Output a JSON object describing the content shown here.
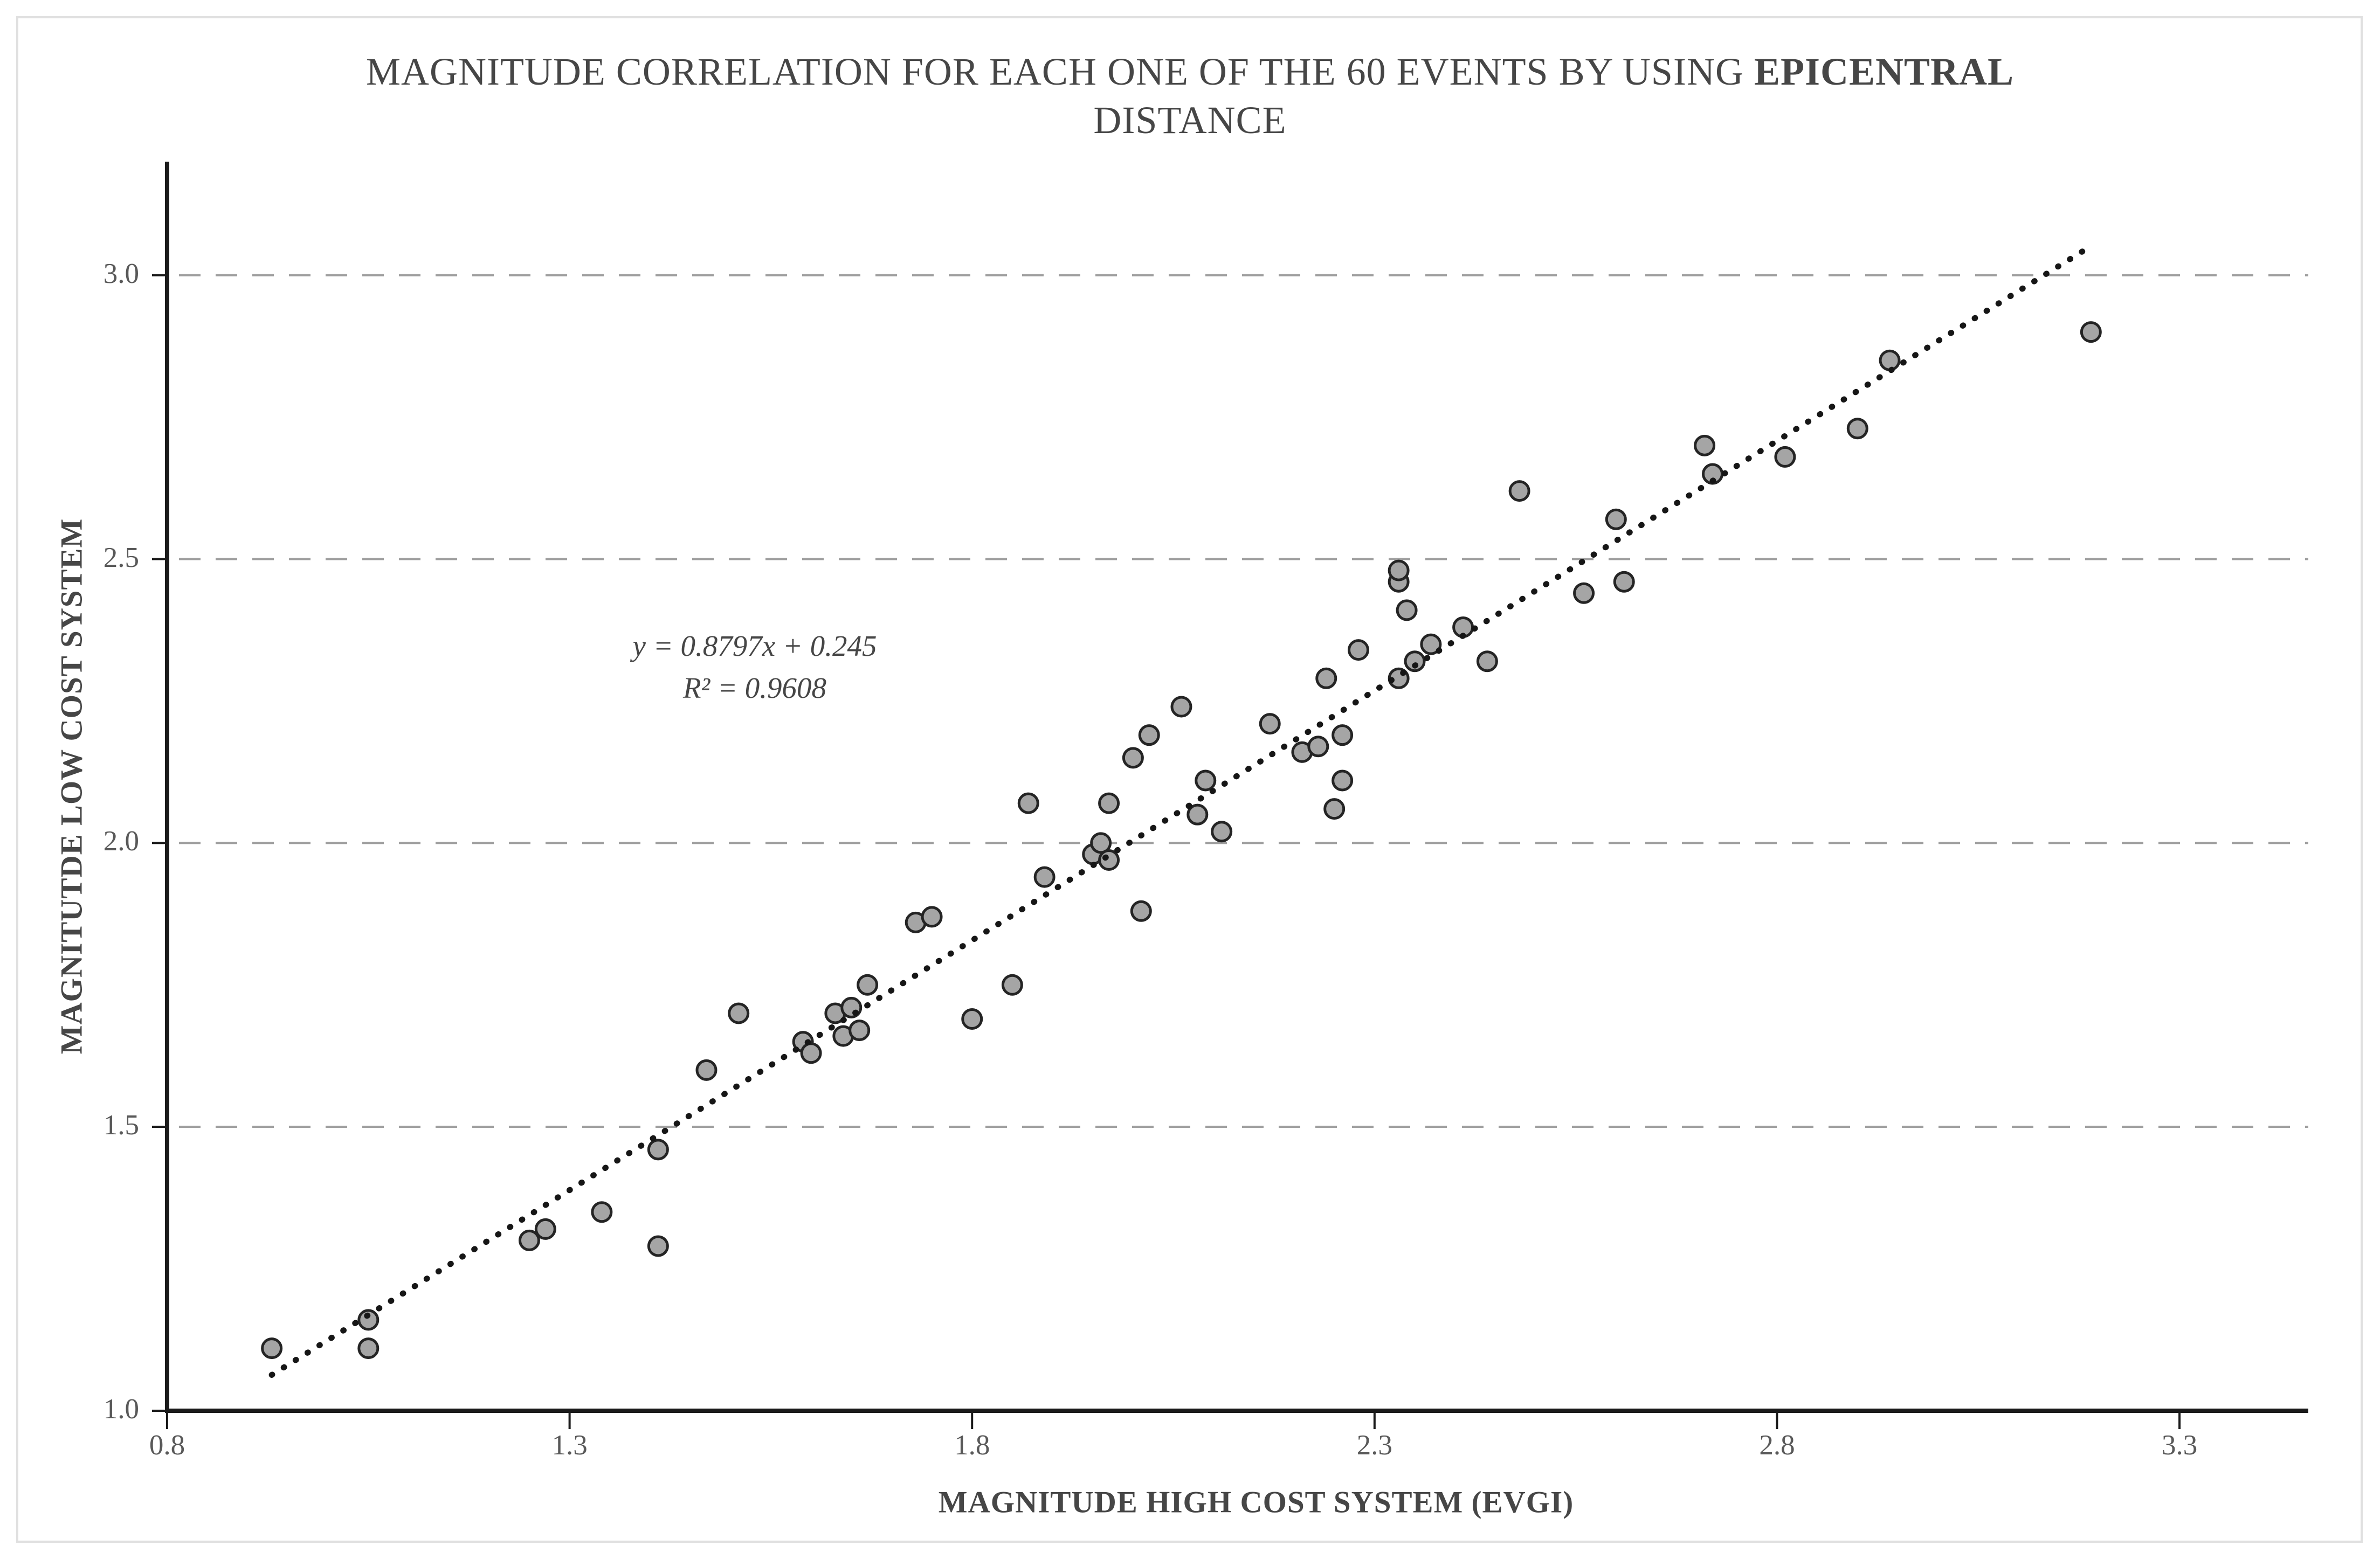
{
  "header": {
    "title_regular": "MAGNITUDE CORRELATION FOR EACH ONE OF THE 60 EVENTS BY USING ",
    "title_bold": "EPICENTRAL",
    "title_line2": "DISTANCE"
  },
  "annotation": {
    "equation": "y = 0.8797x + 0.245",
    "r_squared": "R² = 0.9608"
  },
  "colors": {
    "background": "#ffffff",
    "frame_border": "#e0e0e0",
    "grid": "#9f9f9f",
    "axis": "#1a1a1a",
    "marker_fill": "#a5a5a5",
    "marker_stroke": "#242424",
    "trendline": "#161616",
    "tick_text": "#595959",
    "title_text": "#464646"
  },
  "chart_data": {
    "type": "scatter",
    "title": "MAGNITUDE CORRELATION FOR EACH ONE OF THE 60 EVENTS BY USING EPICENTRAL DISTANCE",
    "xlabel": "MAGNITUDE HIGH COST SYSTEM (EVGI)",
    "ylabel": "MAGNITUTDE LOW COST SYSTEM",
    "xlim": [
      0.8,
      3.46
    ],
    "ylim": [
      1.0,
      3.2
    ],
    "x_ticks": [
      0.8,
      1.3,
      1.8,
      2.3,
      2.8,
      3.3
    ],
    "x_tick_labels": [
      "0.8",
      "1.3",
      "1.8",
      "2.3",
      "2.8",
      "3.3"
    ],
    "y_ticks": [
      1.0,
      1.5,
      2.0,
      2.5,
      3.0
    ],
    "y_tick_labels": [
      "1.0",
      "1.5",
      "2.0",
      "2.5",
      "3.0"
    ],
    "grid": "horizontal-dashed",
    "legend": "none",
    "trendline": {
      "style": "dotted",
      "slope": 0.8797,
      "intercept": 0.245,
      "x_start": 0.93,
      "x_end": 3.18
    },
    "points": [
      [
        0.93,
        1.11
      ],
      [
        1.05,
        1.16
      ],
      [
        1.05,
        1.11
      ],
      [
        1.25,
        1.3
      ],
      [
        1.27,
        1.32
      ],
      [
        1.34,
        1.35
      ],
      [
        1.41,
        1.29
      ],
      [
        1.41,
        1.46
      ],
      [
        1.47,
        1.6
      ],
      [
        1.51,
        1.7
      ],
      [
        1.59,
        1.65
      ],
      [
        1.6,
        1.63
      ],
      [
        1.63,
        1.7
      ],
      [
        1.64,
        1.66
      ],
      [
        1.65,
        1.71
      ],
      [
        1.66,
        1.67
      ],
      [
        1.67,
        1.75
      ],
      [
        1.73,
        1.86
      ],
      [
        1.75,
        1.87
      ],
      [
        1.8,
        1.69
      ],
      [
        1.85,
        1.75
      ],
      [
        1.87,
        2.07
      ],
      [
        1.89,
        1.94
      ],
      [
        1.95,
        1.98
      ],
      [
        1.96,
        2.0
      ],
      [
        1.97,
        1.97
      ],
      [
        1.97,
        2.07
      ],
      [
        2.0,
        2.15
      ],
      [
        2.01,
        1.88
      ],
      [
        2.02,
        2.19
      ],
      [
        2.06,
        2.24
      ],
      [
        2.08,
        2.05
      ],
      [
        2.09,
        2.11
      ],
      [
        2.11,
        2.02
      ],
      [
        2.17,
        2.21
      ],
      [
        2.21,
        2.16
      ],
      [
        2.23,
        2.17
      ],
      [
        2.24,
        2.29
      ],
      [
        2.25,
        2.06
      ],
      [
        2.26,
        2.11
      ],
      [
        2.26,
        2.19
      ],
      [
        2.28,
        2.34
      ],
      [
        2.33,
        2.29
      ],
      [
        2.33,
        2.46
      ],
      [
        2.33,
        2.48
      ],
      [
        2.34,
        2.41
      ],
      [
        2.35,
        2.32
      ],
      [
        2.37,
        2.35
      ],
      [
        2.41,
        2.38
      ],
      [
        2.44,
        2.32
      ],
      [
        2.48,
        2.62
      ],
      [
        2.56,
        2.44
      ],
      [
        2.6,
        2.57
      ],
      [
        2.61,
        2.46
      ],
      [
        2.71,
        2.7
      ],
      [
        2.72,
        2.65
      ],
      [
        2.81,
        2.68
      ],
      [
        2.9,
        2.73
      ],
      [
        2.94,
        2.85
      ],
      [
        3.19,
        2.9
      ]
    ]
  }
}
